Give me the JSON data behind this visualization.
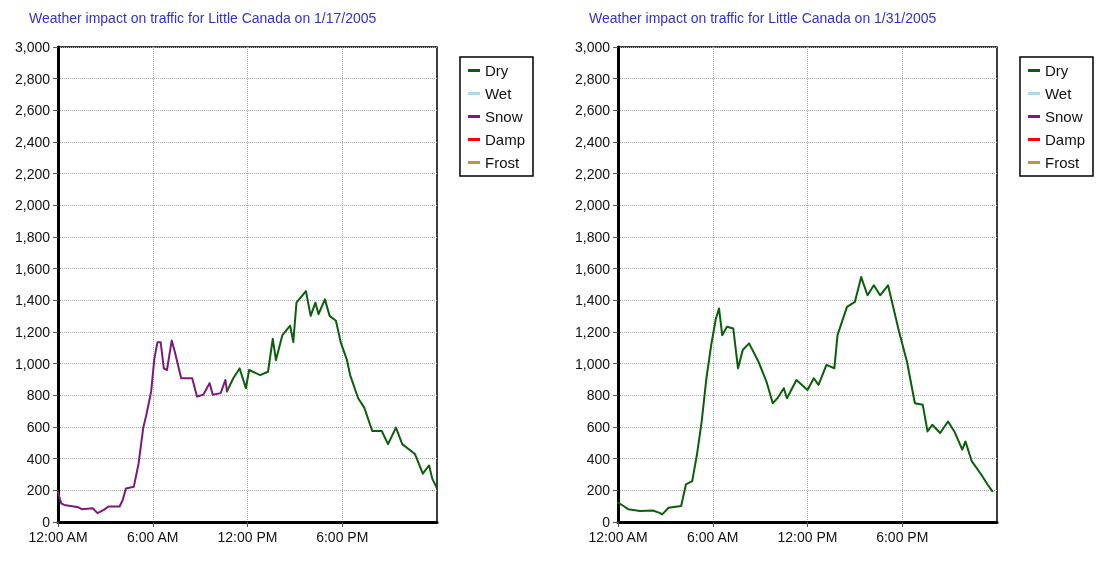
{
  "chart_data": [
    {
      "type": "line",
      "title": "Weather impact on traffic for Little Canada on 1/17/2005",
      "xlim": [
        0,
        24
      ],
      "xticks": [
        {
          "value": 0,
          "label": "12:00 AM"
        },
        {
          "value": 6,
          "label": "6:00 AM"
        },
        {
          "value": 12,
          "label": "12:00 PM"
        },
        {
          "value": 18,
          "label": "6:00 PM"
        }
      ],
      "ylim": [
        0,
        3000
      ],
      "yticks": [
        0,
        {
          "value": 200,
          "label": "200"
        },
        {
          "value": 400,
          "label": "400"
        },
        {
          "value": 600,
          "label": "600"
        },
        {
          "value": 800,
          "label": "800"
        },
        {
          "value": 1000,
          "label": "1,000"
        },
        {
          "value": 1200,
          "label": "1,200"
        },
        {
          "value": 1400,
          "label": "1,400"
        },
        {
          "value": 1600,
          "label": "1,600"
        },
        {
          "value": 1800,
          "label": "1,800"
        },
        {
          "value": 2000,
          "label": "2,000"
        },
        {
          "value": 2200,
          "label": "2,200"
        },
        {
          "value": 2400,
          "label": "2,400"
        },
        {
          "value": 2600,
          "label": "2,600"
        },
        {
          "value": 2800,
          "label": "2,800"
        },
        {
          "value": 3000,
          "label": "3,000"
        }
      ],
      "grid": true,
      "legend": "right",
      "marker": "none",
      "line_style": "solid",
      "series": [
        {
          "name": "Dry",
          "color": "#0b5e0b",
          "x": [
            10.7,
            11.1,
            11.5,
            11.9,
            12.1,
            12.8,
            13.3,
            13.6,
            13.8,
            14.2,
            14.7,
            14.9,
            15.1,
            15.7,
            16.0,
            16.3,
            16.5,
            16.9,
            17.2,
            17.6,
            17.9,
            18.3,
            18.5,
            19.0,
            19.4,
            19.9,
            20.5,
            20.9,
            21.4,
            21.8,
            22.6,
            23.1,
            23.5,
            23.7,
            24.0
          ],
          "values": [
            825,
            908,
            970,
            845,
            960,
            928,
            949,
            1157,
            1022,
            1178,
            1240,
            1136,
            1385,
            1458,
            1302,
            1385,
            1313,
            1406,
            1302,
            1271,
            1136,
            1022,
            928,
            783,
            721,
            575,
            575,
            492,
            596,
            492,
            430,
            305,
            357,
            274,
            212
          ]
        },
        {
          "name": "Wet",
          "color": "#add8e6"
        },
        {
          "name": "Snow",
          "color": "#7b1a7b",
          "x": [
            0,
            0.2,
            0.4,
            1.3,
            1.5,
            2.2,
            2.5,
            2.9,
            3.2,
            3.9,
            4.1,
            4.3,
            4.8,
            5.1,
            5.4,
            5.6,
            5.9,
            6.1,
            6.3,
            6.5,
            6.7,
            6.9,
            7.2,
            7.4,
            7.8,
            8.5,
            8.8,
            9.2,
            9.6,
            9.8,
            10.3,
            10.6,
            10.7
          ],
          "values": [
            190,
            118,
            108,
            93,
            81,
            87,
            56,
            77,
            98,
            98,
            139,
            212,
            222,
            368,
            596,
            679,
            825,
            1032,
            1136,
            1136,
            970,
            960,
            1146,
            1074,
            908,
            908,
            793,
            804,
            877,
            804,
            814,
            897,
            825
          ]
        },
        {
          "name": "Damp",
          "color": "#ff0000"
        },
        {
          "name": "Frost",
          "color": "#b8963c"
        }
      ]
    },
    {
      "type": "line",
      "title": "Weather impact on traffic for Little Canada on 1/31/2005",
      "xlim": [
        0,
        24
      ],
      "xticks": [
        {
          "value": 0,
          "label": "12:00 AM"
        },
        {
          "value": 6,
          "label": "6:00 AM"
        },
        {
          "value": 12,
          "label": "12:00 PM"
        },
        {
          "value": 18,
          "label": "6:00 PM"
        }
      ],
      "ylim": [
        0,
        3000
      ],
      "yticks": [
        0,
        {
          "value": 200,
          "label": "200"
        },
        {
          "value": 400,
          "label": "400"
        },
        {
          "value": 600,
          "label": "600"
        },
        {
          "value": 800,
          "label": "800"
        },
        {
          "value": 1000,
          "label": "1,000"
        },
        {
          "value": 1200,
          "label": "1,200"
        },
        {
          "value": 1400,
          "label": "1,400"
        },
        {
          "value": 1600,
          "label": "1,600"
        },
        {
          "value": 1800,
          "label": "1,800"
        },
        {
          "value": 2000,
          "label": "2,000"
        },
        {
          "value": 2200,
          "label": "2,200"
        },
        {
          "value": 2400,
          "label": "2,400"
        },
        {
          "value": 2600,
          "label": "2,600"
        },
        {
          "value": 2800,
          "label": "2,800"
        },
        {
          "value": 3000,
          "label": "3,000"
        }
      ],
      "grid": true,
      "legend": "right",
      "marker": "none",
      "line_style": "solid",
      "series": [
        {
          "name": "Dry",
          "color": "#0b5e0b",
          "x": [
            0,
            0.35,
            0.66,
            1.4,
            2.2,
            2.6,
            2.8,
            3.2,
            4.0,
            4.3,
            4.7,
            5.0,
            5.3,
            5.6,
            5.9,
            6.2,
            6.4,
            6.6,
            6.9,
            7.3,
            7.6,
            7.9,
            8.3,
            8.9,
            9.4,
            9.8,
            10.1,
            10.5,
            10.7,
            11.3,
            12.0,
            12.4,
            12.7,
            13.2,
            13.7,
            13.9,
            14.5,
            15.0,
            15.4,
            15.8,
            16.2,
            16.6,
            17.1,
            17.4,
            17.8,
            18.3,
            18.8,
            19.3,
            19.6,
            19.9,
            20.4,
            20.9,
            21.3,
            21.8,
            22.0,
            22.4,
            23.0,
            23.4,
            23.7
          ],
          "values": [
            122,
            101,
            80,
            69,
            73,
            59,
            48,
            90,
            101,
            237,
            258,
            426,
            635,
            908,
            1117,
            1285,
            1348,
            1180,
            1233,
            1222,
            971,
            1086,
            1128,
            1012,
            887,
            750,
            782,
            845,
            782,
            897,
            834,
            908,
            866,
            992,
            971,
            1180,
            1359,
            1390,
            1547,
            1432,
            1495,
            1432,
            1495,
            1369,
            1201,
            1012,
            750,
            740,
            572,
            614,
            562,
            635,
            572,
            457,
            509,
            384,
            300,
            237,
            195
          ]
        },
        {
          "name": "Wet",
          "color": "#add8e6"
        },
        {
          "name": "Snow",
          "color": "#7b1a7b"
        },
        {
          "name": "Damp",
          "color": "#ff0000"
        },
        {
          "name": "Frost",
          "color": "#b8963c"
        }
      ]
    }
  ]
}
